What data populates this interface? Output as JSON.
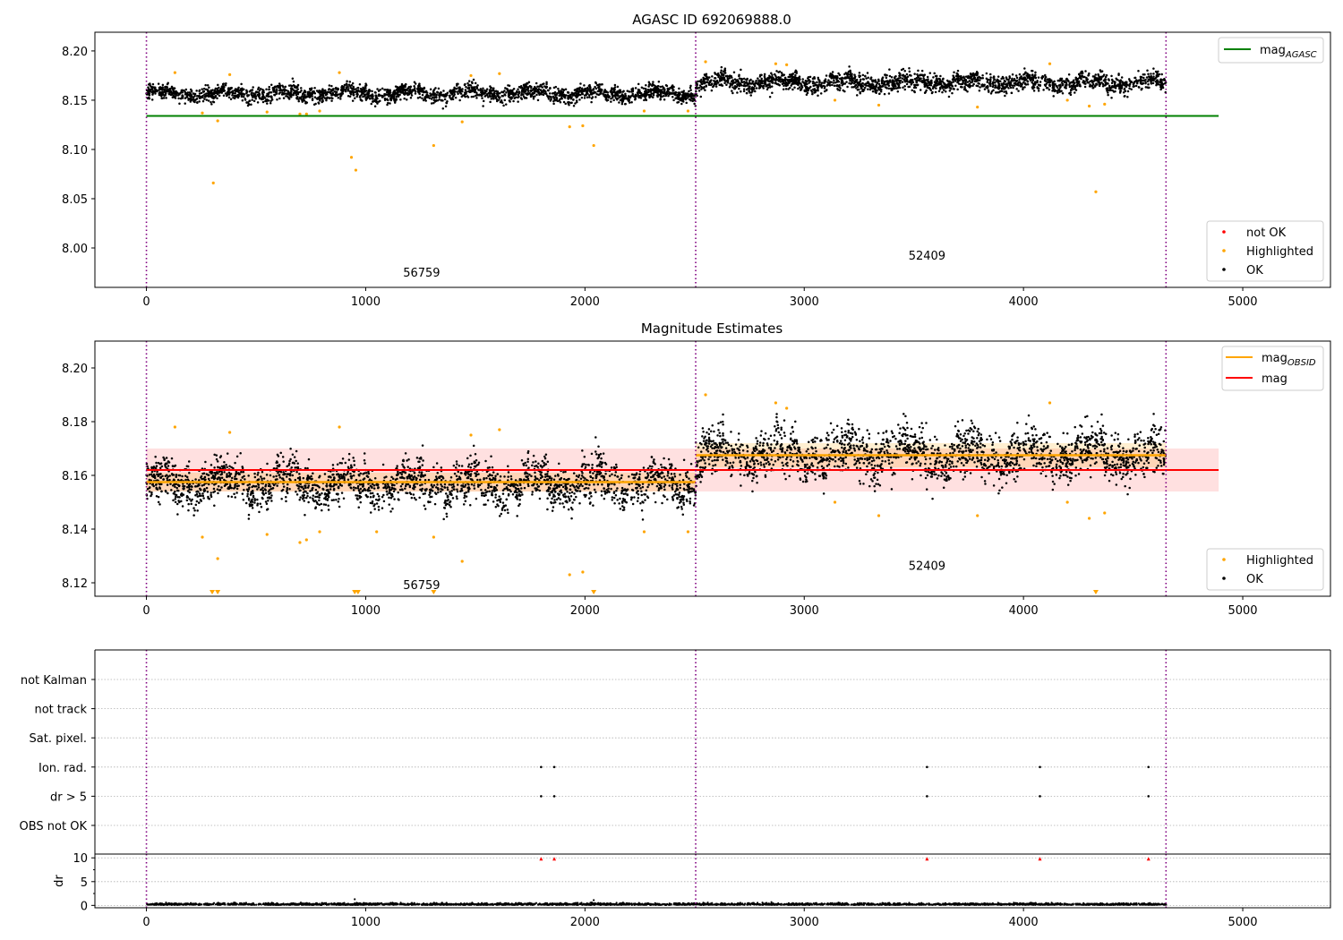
{
  "figure_title": "AGASC ID 692069888.0",
  "chart_data": [
    {
      "type": "scatter",
      "title": "AGASC ID 692069888.0",
      "xlim": [
        -235,
        5400
      ],
      "ylim": [
        7.96,
        8.219
      ],
      "xticks": [
        0,
        1000,
        2000,
        3000,
        4000,
        5000
      ],
      "yticks": [
        8.0,
        8.05,
        8.1,
        8.15,
        8.2
      ],
      "ytick_labels": [
        "8.00",
        "8.05",
        "8.10",
        "8.15",
        "8.20"
      ],
      "obsid_boundaries": [
        0,
        2505,
        4650
      ],
      "obsid_labels": [
        {
          "text": "56759",
          "x": 1255,
          "y": 7.971
        },
        {
          "text": "52409",
          "x": 3560,
          "y": 7.988
        }
      ],
      "segments": [
        {
          "x0": 0,
          "x1": 2505,
          "mean": 8.157,
          "spread": 0.007
        },
        {
          "x0": 2505,
          "x1": 4650,
          "mean": 8.168,
          "spread": 0.008
        }
      ],
      "series": [
        {
          "name": "mag_AGASC",
          "kind": "hline",
          "value": 8.134,
          "x_range": [
            0,
            4890
          ],
          "color": "#008000"
        },
        {
          "name": "not OK",
          "kind": "points",
          "color": "#ff0000",
          "values": []
        },
        {
          "name": "Highlighted",
          "kind": "points",
          "color": "#ffa500",
          "x": [
            130,
            255,
            305,
            325,
            380,
            550,
            700,
            730,
            790,
            880,
            935,
            955,
            1310,
            1440,
            1480,
            1610,
            1930,
            1990,
            2040,
            2270,
            2470,
            2550,
            2870,
            2920,
            3140,
            3340,
            3790,
            4120,
            4200,
            4300,
            4330,
            4370
          ],
          "y": [
            8.178,
            8.137,
            8.066,
            8.129,
            8.176,
            8.138,
            8.136,
            8.136,
            8.139,
            8.178,
            8.092,
            8.079,
            8.104,
            8.128,
            8.175,
            8.177,
            8.123,
            8.124,
            8.104,
            8.139,
            8.139,
            8.189,
            8.187,
            8.186,
            8.15,
            8.145,
            8.143,
            8.187,
            8.15,
            8.144,
            8.057,
            8.146
          ]
        }
      ],
      "legends": [
        {
          "position": "upper right",
          "entries": [
            {
              "label": "mag",
              "sub": "AGASC",
              "style": "line",
              "color": "#008000"
            }
          ]
        },
        {
          "position": "lower right",
          "entries": [
            {
              "label": "not OK",
              "style": "dot",
              "color": "#ff0000"
            },
            {
              "label": "Highlighted",
              "style": "dot",
              "color": "#ffa500"
            },
            {
              "label": "OK",
              "style": "dot",
              "color": "#000000"
            }
          ]
        }
      ]
    },
    {
      "type": "scatter",
      "title": "Magnitude Estimates",
      "xlim": [
        -235,
        5400
      ],
      "ylim": [
        8.115,
        8.21
      ],
      "xticks": [
        0,
        1000,
        2000,
        3000,
        4000,
        5000
      ],
      "yticks": [
        8.12,
        8.14,
        8.16,
        8.18,
        8.2
      ],
      "ytick_labels": [
        "8.12",
        "8.14",
        "8.16",
        "8.18",
        "8.20"
      ],
      "obsid_boundaries": [
        0,
        2505,
        4650
      ],
      "obsid_labels": [
        {
          "text": "56759",
          "x": 1255,
          "y": 8.1176
        },
        {
          "text": "52409",
          "x": 3560,
          "y": 8.1249
        }
      ],
      "segments": [
        {
          "x0": 0,
          "x1": 2505,
          "mean": 8.157,
          "spread": 0.007
        },
        {
          "x0": 2505,
          "x1": 4650,
          "mean": 8.168,
          "spread": 0.008
        }
      ],
      "mag": {
        "value": 8.162,
        "band": [
          8.154,
          8.17
        ],
        "x_range": [
          0,
          4890
        ],
        "color": "#ff0000"
      },
      "mag_obsid": [
        {
          "x0": 0,
          "x1": 2505,
          "value": 8.1575,
          "band": [
            8.154,
            8.161
          ]
        },
        {
          "x0": 2505,
          "x1": 4650,
          "value": 8.1675,
          "band": [
            8.163,
            8.172
          ]
        }
      ],
      "highlighted": {
        "color": "#ffa500",
        "x": [
          130,
          255,
          325,
          380,
          550,
          700,
          730,
          790,
          880,
          1050,
          1310,
          1440,
          1480,
          1610,
          1930,
          1990,
          2270,
          2470,
          2550,
          2870,
          2920,
          3140,
          3340,
          3790,
          4120,
          4200,
          4300,
          4370
        ],
        "y": [
          8.178,
          8.137,
          8.129,
          8.176,
          8.138,
          8.135,
          8.136,
          8.139,
          8.178,
          8.139,
          8.137,
          8.128,
          8.175,
          8.177,
          8.123,
          8.124,
          8.139,
          8.139,
          8.19,
          8.187,
          8.185,
          8.15,
          8.145,
          8.145,
          8.187,
          8.15,
          8.144,
          8.146
        ]
      },
      "offscale_markers": {
        "color": "#ffa500",
        "x": [
          300,
          325,
          950,
          965,
          1310,
          2040,
          4330
        ]
      },
      "legends": [
        {
          "position": "upper right",
          "entries": [
            {
              "label": "mag",
              "sub": "OBSID",
              "style": "line",
              "color": "#ffa500"
            },
            {
              "label": "mag",
              "style": "line",
              "color": "#ff0000"
            }
          ]
        },
        {
          "position": "lower right",
          "entries": [
            {
              "label": "Highlighted",
              "style": "dot",
              "color": "#ffa500"
            },
            {
              "label": "OK",
              "style": "dot",
              "color": "#000000"
            }
          ]
        }
      ]
    },
    {
      "type": "scatter",
      "title": "",
      "xlim": [
        -235,
        5400
      ],
      "flag_rows": [
        "not Kalman",
        "not track",
        "Sat. pixel.",
        "Ion. rad.",
        "dr > 5",
        "OBS not OK"
      ],
      "flag_points": [
        {
          "row": "Ion. rad.",
          "x": [
            1800,
            1860,
            3560,
            4075,
            4570
          ]
        },
        {
          "row": "dr > 5",
          "x": [
            1800,
            1860,
            3560,
            4075,
            4570
          ]
        }
      ],
      "obsid_boundaries": [
        0,
        2505,
        4650
      ]
    },
    {
      "type": "scatter",
      "title": "",
      "xlim": [
        -235,
        5400
      ],
      "ylim": [
        -0.5,
        10.8
      ],
      "ylabel": "dr",
      "xticks": [
        0,
        1000,
        2000,
        3000,
        4000,
        5000
      ],
      "yticks": [
        0,
        5,
        10
      ],
      "ytick_labels": [
        "0",
        "5",
        "10"
      ],
      "dr_spikes": {
        "color": "#ff0000",
        "x": [
          1800,
          1860,
          3560,
          4075,
          4570
        ],
        "y": [
          9.8,
          9.8,
          9.8,
          9.8,
          9.8
        ]
      },
      "dr_extra": {
        "x": [
          950,
          2040
        ],
        "y": [
          1.3,
          1.1
        ]
      },
      "obsid_boundaries": [
        0,
        2505,
        4650
      ]
    }
  ]
}
